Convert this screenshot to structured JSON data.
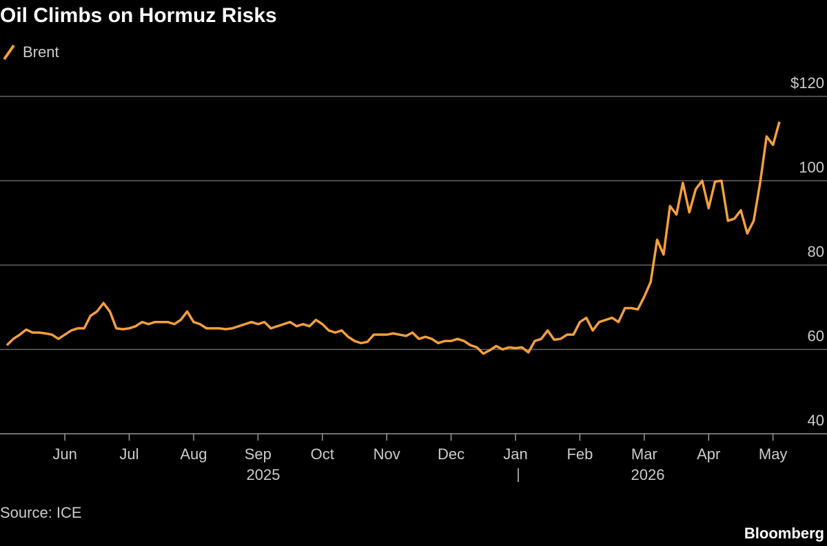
{
  "chart_data": {
    "type": "line",
    "title": "Oil Climbs on Hormuz Risks",
    "series": [
      {
        "name": "Brent",
        "color": "#f5a03c",
        "values": [
          61,
          62.5,
          63.5,
          64.7,
          64,
          64,
          63.8,
          63.5,
          62.5,
          63.5,
          64.5,
          65,
          65,
          68,
          69,
          71,
          69,
          65,
          64.8,
          65,
          65.5,
          66.5,
          66,
          66.5,
          66.5,
          66.5,
          66,
          67,
          69,
          66.5,
          66,
          65,
          65,
          65,
          64.8,
          65,
          65.5,
          66,
          66.5,
          66,
          66.5,
          65,
          65.5,
          66,
          66.5,
          65.5,
          66,
          65.5,
          67,
          66,
          64.5,
          64,
          64.5,
          63,
          62,
          61.5,
          61.8,
          63.5,
          63.5,
          63.5,
          63.8,
          63.5,
          63.2,
          64,
          62.5,
          63,
          62.5,
          61.5,
          62,
          62,
          62.5,
          62,
          61,
          60.5,
          59,
          59.8,
          60.8,
          60,
          60.5,
          60.3,
          60.5,
          59.3,
          62,
          62.5,
          64.5,
          62.3,
          62.5,
          63.5,
          63.5,
          66.5,
          67.5,
          64.5,
          66.5,
          67,
          67.5,
          66.5,
          69.8,
          69.8,
          69.5,
          72.5,
          76,
          86,
          82.5,
          94,
          92,
          99.5,
          92.5,
          98,
          100,
          93.5,
          99.8,
          100,
          90.5,
          91,
          93,
          87.5,
          90.5,
          99.5,
          110.5,
          108.5,
          114
        ]
      }
    ],
    "xlim": [
      0,
      120
    ],
    "xticks": [
      {
        "value": 9,
        "label": "Jun"
      },
      {
        "value": 19,
        "label": "Jul"
      },
      {
        "value": 29,
        "label": "Aug"
      },
      {
        "value": 39,
        "label": "Sep"
      },
      {
        "value": 49,
        "label": "Oct"
      },
      {
        "value": 59,
        "label": "Nov"
      },
      {
        "value": 69,
        "label": "Dec"
      },
      {
        "value": 79,
        "label": "Jan"
      },
      {
        "value": 89,
        "label": "Feb"
      },
      {
        "value": 99,
        "label": "Mar"
      },
      {
        "value": 109,
        "label": "Apr"
      },
      {
        "value": 119,
        "label": "May"
      }
    ],
    "year_labels": [
      "2025",
      "2026"
    ],
    "ylim": [
      40,
      120
    ],
    "yticks": [
      40,
      60,
      80,
      100,
      {
        "value": 120,
        "label": "$120"
      }
    ],
    "grid": true,
    "source": "Source: ICE",
    "brand": "Bloomberg"
  }
}
